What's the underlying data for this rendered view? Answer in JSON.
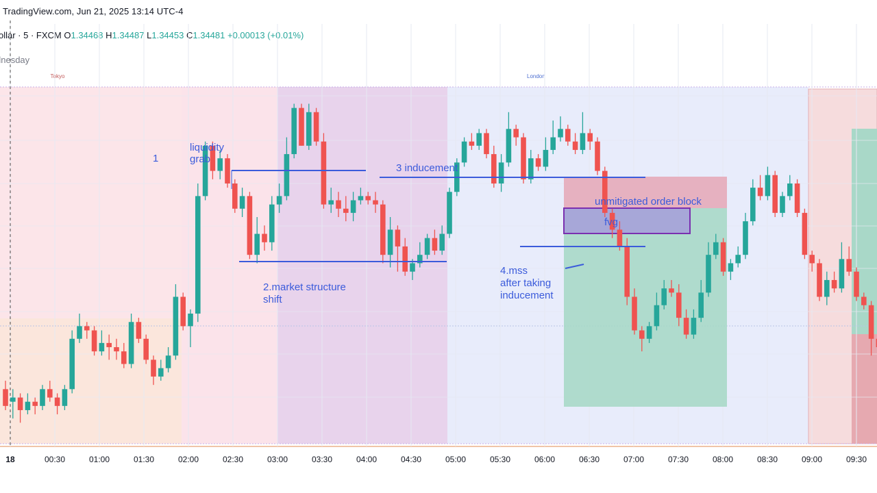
{
  "header": {
    "source": "TradingView.com, Jun 21, 2025 13:14 UTC-4",
    "symbol": "ollar · 5 · FXCM",
    "open_key": "O",
    "open": "1.34468",
    "high_key": "H",
    "high": "1.34487",
    "low_key": "L",
    "low": "1.34453",
    "close_key": "C",
    "close": "1.34481",
    "change": "+0.00013 (+0.01%)",
    "day_label": "dnesday"
  },
  "sessions": [
    {
      "label": "Tokyo",
      "start": "00:00",
      "end": "03:00",
      "color": "#fbe3ea"
    },
    {
      "label": "",
      "start": "03:00",
      "end": "05:00",
      "color": "#e7d5ee"
    },
    {
      "label": "London",
      "start": "05:00",
      "end": "09:00",
      "color": "#e9edfb"
    },
    {
      "label": "",
      "start": "09:00",
      "end": "09:50",
      "color": "#f6dedf"
    }
  ],
  "chart_data": {
    "type": "candlestick",
    "x_axis": {
      "ticks": [
        "18",
        "00:30",
        "01:00",
        "01:30",
        "02:00",
        "02:30",
        "03:00",
        "03:30",
        "04:00",
        "04:30",
        "05:00",
        "05:30",
        "06:00",
        "06:30",
        "07:00",
        "07:30",
        "08:00",
        "08:30",
        "09:00",
        "09:30"
      ]
    },
    "y_axis": {
      "range": [
        0,
        100
      ],
      "units": "relative"
    },
    "candles": [
      [
        38,
        34,
        40,
        33
      ],
      [
        35,
        36,
        38,
        31
      ],
      [
        36,
        33,
        37,
        30
      ],
      [
        33,
        35,
        37,
        32
      ],
      [
        35,
        34,
        36,
        32
      ],
      [
        34,
        38,
        39,
        33
      ],
      [
        38,
        36,
        40,
        35
      ],
      [
        36,
        34,
        37,
        32
      ],
      [
        34,
        38,
        39,
        33
      ],
      [
        38,
        50,
        52,
        37
      ],
      [
        50,
        53,
        56,
        49
      ],
      [
        53,
        52,
        54,
        50
      ],
      [
        52,
        47,
        53,
        46
      ],
      [
        47,
        49,
        52,
        46
      ],
      [
        49,
        48,
        51,
        45
      ],
      [
        48,
        47,
        50,
        45
      ],
      [
        47,
        44,
        49,
        43
      ],
      [
        44,
        54,
        56,
        43
      ],
      [
        54,
        50,
        55,
        49
      ],
      [
        50,
        45,
        51,
        44
      ],
      [
        45,
        41,
        46,
        39
      ],
      [
        41,
        43,
        45,
        40
      ],
      [
        43,
        46,
        48,
        42
      ],
      [
        46,
        60,
        63,
        45
      ],
      [
        60,
        53,
        61,
        52
      ],
      [
        53,
        56,
        57,
        48
      ],
      [
        56,
        84,
        87,
        54
      ],
      [
        84,
        96,
        97,
        83
      ],
      [
        96,
        90,
        97,
        88
      ],
      [
        90,
        93,
        95,
        88
      ],
      [
        93,
        87,
        94,
        86
      ],
      [
        87,
        81,
        88,
        80
      ],
      [
        81,
        84,
        86,
        79
      ],
      [
        84,
        70,
        85,
        69
      ],
      [
        70,
        75,
        79,
        68
      ],
      [
        75,
        73,
        77,
        71
      ],
      [
        73,
        82,
        84,
        71
      ],
      [
        82,
        84,
        87,
        80
      ],
      [
        84,
        94,
        98,
        83
      ],
      [
        94,
        105,
        106,
        93
      ],
      [
        105,
        96,
        106,
        96
      ],
      [
        96,
        104,
        106,
        95
      ],
      [
        104,
        97,
        105,
        96
      ],
      [
        97,
        82,
        99,
        81
      ],
      [
        82,
        83,
        86,
        80
      ],
      [
        83,
        81,
        85,
        79
      ],
      [
        81,
        80,
        84,
        78
      ],
      [
        80,
        83,
        85,
        78
      ],
      [
        83,
        84,
        86,
        82
      ],
      [
        84,
        83,
        85,
        82
      ],
      [
        83,
        82,
        85,
        80
      ],
      [
        82,
        70,
        83,
        68
      ],
      [
        70,
        76,
        79,
        67
      ],
      [
        76,
        72,
        77,
        66
      ],
      [
        72,
        66,
        74,
        65
      ],
      [
        66,
        68,
        69,
        64
      ],
      [
        68,
        70,
        73,
        67
      ],
      [
        70,
        74,
        75,
        69
      ],
      [
        74,
        71,
        76,
        70
      ],
      [
        71,
        75,
        77,
        70
      ],
      [
        75,
        85,
        86,
        74
      ],
      [
        85,
        92,
        93,
        84
      ],
      [
        92,
        97,
        98,
        91
      ],
      [
        97,
        96,
        99,
        95
      ],
      [
        96,
        99,
        100,
        95
      ],
      [
        99,
        94,
        100,
        93
      ],
      [
        94,
        87,
        96,
        86
      ],
      [
        87,
        92,
        94,
        85
      ],
      [
        92,
        100,
        104,
        91
      ],
      [
        100,
        98,
        101,
        96
      ],
      [
        98,
        88,
        99,
        87
      ],
      [
        88,
        93,
        95,
        87
      ],
      [
        93,
        91,
        94,
        90
      ],
      [
        91,
        95,
        98,
        90
      ],
      [
        95,
        98,
        102,
        94
      ],
      [
        98,
        100,
        103,
        97
      ],
      [
        100,
        97,
        101,
        96
      ],
      [
        97,
        95,
        99,
        94
      ],
      [
        95,
        99,
        104,
        94
      ],
      [
        99,
        97,
        100,
        95
      ],
      [
        97,
        90,
        98,
        89
      ],
      [
        90,
        80,
        91,
        79
      ],
      [
        80,
        76,
        81,
        74
      ],
      [
        76,
        72,
        78,
        71
      ],
      [
        72,
        60,
        74,
        58
      ],
      [
        60,
        52,
        62,
        51
      ],
      [
        52,
        50,
        53,
        47
      ],
      [
        50,
        53,
        54,
        49
      ],
      [
        53,
        58,
        61,
        52
      ],
      [
        58,
        62,
        64,
        57
      ],
      [
        62,
        61,
        64,
        60
      ],
      [
        61,
        55,
        63,
        53
      ],
      [
        55,
        51,
        57,
        50
      ],
      [
        51,
        55,
        57,
        50
      ],
      [
        55,
        61,
        64,
        54
      ],
      [
        61,
        70,
        73,
        60
      ],
      [
        70,
        73,
        75,
        69
      ],
      [
        73,
        66,
        74,
        65
      ],
      [
        66,
        68,
        69,
        64
      ],
      [
        68,
        70,
        72,
        67
      ],
      [
        70,
        78,
        80,
        69
      ],
      [
        78,
        86,
        88,
        77
      ],
      [
        86,
        84,
        89,
        83
      ],
      [
        84,
        89,
        91,
        83
      ],
      [
        89,
        80,
        90,
        79
      ],
      [
        80,
        84,
        85,
        79
      ],
      [
        84,
        87,
        89,
        83
      ],
      [
        87,
        80,
        88,
        79
      ],
      [
        80,
        70,
        81,
        69
      ],
      [
        70,
        68,
        71,
        66
      ],
      [
        68,
        60,
        69,
        59
      ],
      [
        60,
        64,
        66,
        58
      ],
      [
        64,
        62,
        66,
        61
      ],
      [
        62,
        69,
        73,
        61
      ],
      [
        69,
        66,
        72,
        65
      ],
      [
        66,
        60,
        67,
        59
      ],
      [
        60,
        58,
        61,
        57
      ],
      [
        58,
        50,
        59,
        46
      ],
      [
        50,
        48,
        51,
        46
      ],
      [
        48,
        56,
        66,
        47
      ]
    ],
    "annotations": {
      "numbers": [
        "1"
      ],
      "texts": [
        "liquidity",
        "grab",
        "3 inducement",
        "2.market structure",
        "shift",
        "4.mss",
        "after taking",
        "inducement",
        "unmitigated order block",
        "fvg"
      ]
    },
    "legend": "none",
    "grid": true
  }
}
